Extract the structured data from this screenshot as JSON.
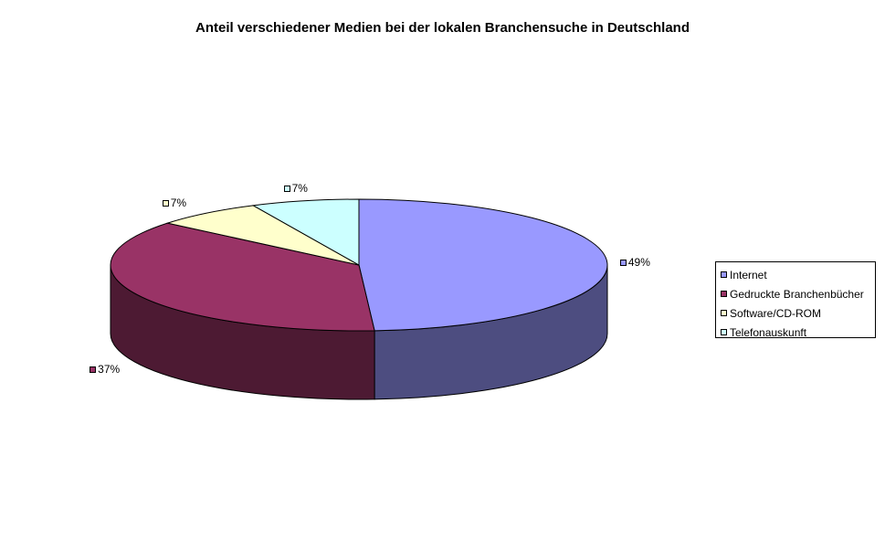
{
  "chart_data": {
    "type": "pie",
    "title": "Anteil verschiedener Medien bei der lokalen Branchensuche in Deutschland",
    "three_d": true,
    "legend_position": "right",
    "categories": [
      "Internet",
      "Gedruckte Branchenbücher",
      "Software/CD-ROM",
      "Telefonauskunft"
    ],
    "values": [
      49,
      37,
      7,
      7
    ],
    "value_labels": [
      "49%",
      "37%",
      "7%",
      "7%"
    ],
    "colors": [
      "#9999ff",
      "#993366",
      "#ffffcc",
      "#ccffff"
    ],
    "side_colors": [
      "#4d4d80",
      "#4d1a33",
      "#808066",
      "#668080"
    ]
  }
}
